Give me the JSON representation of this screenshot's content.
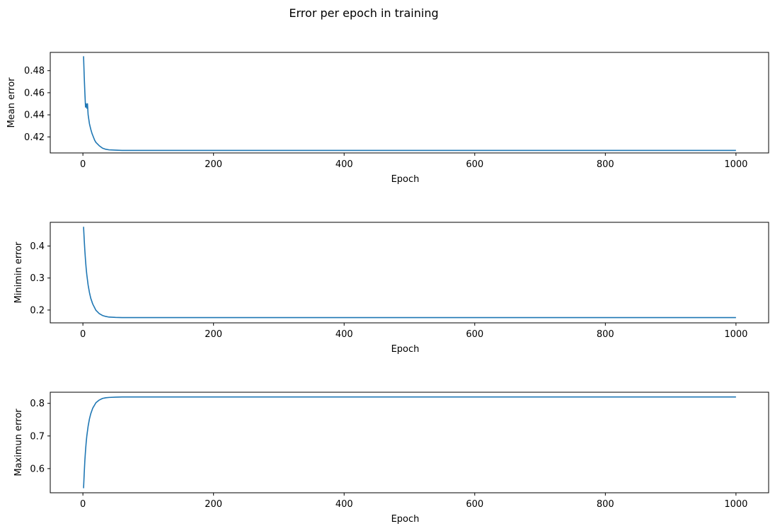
{
  "suptitle": "Error per epoch in training",
  "line_color": "#1f77b4",
  "chart_data": [
    {
      "type": "line",
      "title": "",
      "xlabel": "Epoch",
      "ylabel": "Mean error",
      "xlim": [
        -50,
        1050
      ],
      "ylim": [
        0.4055,
        0.4965
      ],
      "xticks": [
        0,
        200,
        400,
        600,
        800,
        1000
      ],
      "yticks": [
        0.42,
        0.44,
        0.46,
        0.48
      ],
      "ytick_decimals": 2,
      "grid": false,
      "series": [
        {
          "x": [
            1,
            2,
            3,
            4,
            5,
            6,
            7,
            8,
            9,
            10,
            12,
            14,
            16,
            18,
            20,
            25,
            30,
            35,
            40,
            50,
            60,
            80,
            100,
            150,
            200,
            300,
            400,
            500,
            600,
            700,
            800,
            900,
            1000
          ],
          "y": [
            0.493,
            0.475,
            0.46,
            0.447,
            0.45,
            0.446,
            0.45,
            0.44,
            0.436,
            0.432,
            0.427,
            0.423,
            0.42,
            0.417,
            0.415,
            0.412,
            0.4098,
            0.4088,
            0.4083,
            0.408,
            0.4078,
            0.4078,
            0.4078,
            0.4078,
            0.4078,
            0.4078,
            0.4078,
            0.4078,
            0.4078,
            0.4078,
            0.4078,
            0.4078,
            0.4078
          ]
        }
      ]
    },
    {
      "type": "line",
      "title": "",
      "xlabel": "Epoch",
      "ylabel": "Minimin error",
      "xlim": [
        -50,
        1050
      ],
      "ylim": [
        0.16,
        0.474
      ],
      "xticks": [
        0,
        200,
        400,
        600,
        800,
        1000
      ],
      "yticks": [
        0.2,
        0.3,
        0.4
      ],
      "ytick_decimals": 1,
      "grid": false,
      "series": [
        {
          "x": [
            1,
            2,
            3,
            4,
            5,
            6,
            8,
            10,
            12,
            15,
            20,
            25,
            30,
            35,
            40,
            50,
            60,
            80,
            100,
            200,
            400,
            600,
            800,
            1000
          ],
          "y": [
            0.46,
            0.42,
            0.385,
            0.355,
            0.33,
            0.31,
            0.278,
            0.255,
            0.237,
            0.219,
            0.199,
            0.189,
            0.183,
            0.18,
            0.178,
            0.177,
            0.1765,
            0.1765,
            0.1765,
            0.1765,
            0.1765,
            0.1765,
            0.1765,
            0.1765
          ]
        }
      ]
    },
    {
      "type": "line",
      "title": "",
      "xlabel": "Epoch",
      "ylabel": "Maximun error",
      "xlim": [
        -50,
        1050
      ],
      "ylim": [
        0.526,
        0.834
      ],
      "xticks": [
        0,
        200,
        400,
        600,
        800,
        1000
      ],
      "yticks": [
        0.6,
        0.7,
        0.8
      ],
      "ytick_decimals": 1,
      "grid": false,
      "series": [
        {
          "x": [
            1,
            2,
            3,
            4,
            5,
            6,
            8,
            10,
            12,
            15,
            20,
            25,
            30,
            35,
            40,
            50,
            60,
            80,
            100,
            200,
            400,
            600,
            800,
            1000
          ],
          "y": [
            0.54,
            0.585,
            0.625,
            0.655,
            0.68,
            0.7,
            0.73,
            0.752,
            0.768,
            0.785,
            0.802,
            0.81,
            0.815,
            0.817,
            0.818,
            0.819,
            0.8195,
            0.8195,
            0.8195,
            0.8195,
            0.8195,
            0.8195,
            0.8195,
            0.8195
          ]
        }
      ]
    }
  ]
}
